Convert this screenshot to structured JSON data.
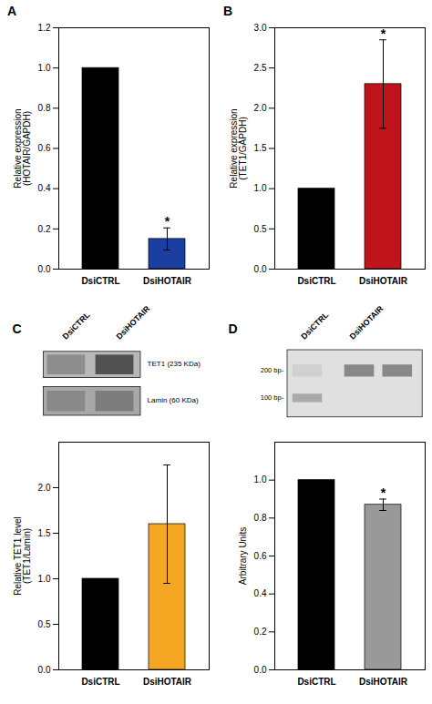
{
  "chart_data": [
    {
      "type": "bar",
      "title": "A",
      "categories": [
        "DsiCTRL",
        "DsiHOTAIR"
      ],
      "values": [
        1.0,
        0.15
      ],
      "errors": [
        0.0,
        0.055
      ],
      "colors": [
        "#000000",
        "#1a3fa0"
      ],
      "ylabel": "Relative expression\n(HOTAIR/GAPDH)",
      "ylim": [
        0.0,
        1.2
      ],
      "yticks": [
        {
          "value": 0.0,
          "label": "0.0"
        },
        0.2,
        0.4,
        0.6,
        0.8,
        {
          "value": 1.0,
          "label": "1.0"
        },
        1.2
      ],
      "annotations": [
        {
          "text": "*",
          "x": "DsiHOTAIR"
        }
      ],
      "grid": false
    },
    {
      "type": "bar",
      "title": "B",
      "categories": [
        "DsiCTRL",
        "DsiHOTAIR"
      ],
      "values": [
        1.0,
        2.3
      ],
      "errors": [
        0.0,
        0.55
      ],
      "colors": [
        "#000000",
        "#c0141b"
      ],
      "ylabel": "Relative expression\n(TET1/GAPDH)",
      "ylim": [
        0.0,
        3.0
      ],
      "yticks": [
        {
          "value": 0.0,
          "label": "0.0"
        },
        0.5,
        {
          "value": 1.0,
          "label": "1.0"
        },
        1.5,
        {
          "value": 2.0,
          "label": "2.0"
        },
        2.5,
        {
          "value": 3.0,
          "label": "3.0"
        }
      ],
      "annotations": [
        {
          "text": "*",
          "x": "DsiHOTAIR"
        }
      ],
      "grid": false
    },
    {
      "type": "bar",
      "title": "C",
      "categories": [
        "DsiCTRL",
        "DsiHOTAIR"
      ],
      "values": [
        1.0,
        1.6
      ],
      "errors": [
        0.0,
        0.65
      ],
      "colors": [
        "#000000",
        "#f5a623"
      ],
      "ylabel": "Relative TET1 level\n(TET1/Lamin)",
      "ylim": [
        0.0,
        2.5
      ],
      "yticks": [
        {
          "value": 0.0,
          "label": "0.0"
        },
        0.5,
        {
          "value": 1.0,
          "label": "1.0"
        },
        1.5,
        {
          "value": 2.0,
          "label": "2.0"
        }
      ],
      "annotations": [],
      "blot": {
        "lanes": [
          "DsiCTRL",
          "DsiHOTAIR"
        ],
        "bands": [
          "TET1 (235 KDa)",
          "Lamin (60 KDa)"
        ]
      },
      "grid": false
    },
    {
      "type": "bar",
      "title": "D",
      "categories": [
        "DsiCTRL",
        "DsiHOTAIR"
      ],
      "values": [
        1.0,
        0.87
      ],
      "errors": [
        0.0,
        0.03
      ],
      "colors": [
        "#000000",
        "#999999"
      ],
      "ylabel": "Arbitrary Units",
      "ylim": [
        0.0,
        1.2
      ],
      "yticks": [
        {
          "value": 0.0,
          "label": "0.0"
        },
        0.2,
        0.4,
        0.6,
        0.8,
        {
          "value": 1.0,
          "label": "1.0"
        }
      ],
      "annotations": [
        {
          "text": "*",
          "x": "DsiHOTAIR"
        }
      ],
      "gel": {
        "lanes": [
          "DsiCTRL",
          "DsiHOTAIR"
        ],
        "bands": [
          "200 bp-",
          "100 bp-"
        ]
      },
      "grid": false
    }
  ]
}
